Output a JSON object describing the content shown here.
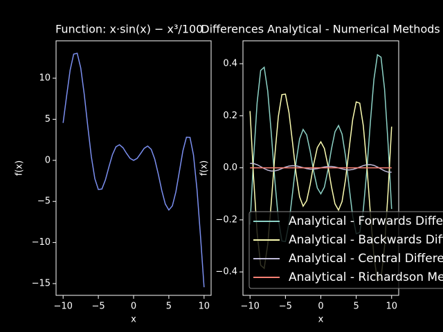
{
  "chart_data": [
    {
      "type": "line",
      "title": "Function: x·sin(x) − x³/100",
      "x_label": "x",
      "y_label": "f(x)",
      "x": [
        -10,
        -9.5,
        -9,
        -8.5,
        -8,
        -7.5,
        -7,
        -6.5,
        -6,
        -5.5,
        -5,
        -4.5,
        -4,
        -3.5,
        -3,
        -2.5,
        -2,
        -1.5,
        -1,
        -0.5,
        0,
        0.5,
        1,
        1.5,
        2,
        2.5,
        3,
        3.5,
        4,
        4.5,
        5,
        5.5,
        6,
        6.5,
        7,
        7.5,
        8,
        8.5,
        9,
        9.5,
        10
      ],
      "values": [
        4.56,
        7.859,
        10.999,
        12.928,
        13.035,
        11.254,
        8.029,
        4.144,
        0.483,
        -2.217,
        -3.545,
        -3.488,
        -2.387,
        -0.799,
        0.693,
        1.652,
        1.899,
        1.53,
        0.852,
        0.241,
        0,
        0.238,
        0.831,
        1.462,
        1.739,
        1.34,
        0.153,
        -1.656,
        -3.667,
        -5.31,
        -6.045,
        -5.544,
        -3.837,
        -1.348,
        1.169,
        2.816,
        2.795,
        0.646,
        -3.581,
        -9.288,
        -15.44
      ],
      "color": "#7b8ff0",
      "xlim": [
        -11,
        11
      ],
      "xticks": [
        {
          "value": -10,
          "label": "−10"
        },
        {
          "value": -5,
          "label": "−5"
        },
        0,
        5,
        10
      ],
      "ylim": [
        -16.43,
        14.55
      ],
      "yticks": [
        {
          "value": -15,
          "label": "−15"
        },
        {
          "value": -10,
          "label": "−10"
        },
        {
          "value": -5,
          "label": "−5"
        },
        0,
        5,
        10
      ]
    },
    {
      "type": "line",
      "title": "Differences Analytical - Numerical Methods",
      "x_label": "x",
      "y_label": "f(x)",
      "x": [
        -10,
        -9.5,
        -9,
        -8.5,
        -8,
        -7.5,
        -7,
        -6.5,
        -6,
        -5.5,
        -5,
        -4.5,
        -4,
        -3.5,
        -3,
        -2.5,
        -2,
        -1.5,
        -1,
        -0.5,
        0,
        0.5,
        1,
        1.5,
        2,
        2.5,
        3,
        3.5,
        4,
        4.5,
        5,
        5.5,
        6,
        6.5,
        7,
        7.5,
        8,
        8.5,
        9,
        9.5,
        10
      ],
      "series": [
        {
          "name": "Analytical - Forwards Differences",
          "color": "#8dd3c7",
          "values": [
            -0.2181,
            0.0355,
            0.2496,
            0.3741,
            0.3863,
            0.2946,
            0.1336,
            -0.0473,
            -0.1978,
            -0.2814,
            -0.2831,
            -0.2124,
            -0.098,
            0.0218,
            0.1112,
            0.1474,
            0.1265,
            0.0632,
            -0.015,
            -0.0773,
            -0.1,
            -0.0743,
            -0.009,
            0.0722,
            0.1385,
            0.1624,
            0.1292,
            0.0428,
            -0.074,
            -0.1854,
            -0.2531,
            -0.2484,
            -0.1618,
            -0.0083,
            0.1756,
            0.3396,
            0.4343,
            0.4251,
            0.3036,
            0.0925,
            -0.1581
          ]
        },
        {
          "name": "Analytical - Backwards Differences",
          "color": "#feffb3",
          "values": [
            0.2181,
            -0.0355,
            -0.2496,
            -0.3741,
            -0.3863,
            -0.2946,
            -0.1336,
            0.0473,
            0.1978,
            0.2814,
            0.2831,
            0.2124,
            0.098,
            -0.0218,
            -0.1112,
            -0.1474,
            -0.1265,
            -0.0632,
            0.015,
            0.0773,
            0.1,
            0.0743,
            0.009,
            -0.0722,
            -0.1385,
            -0.1624,
            -0.1292,
            -0.0428,
            0.074,
            0.1854,
            0.2531,
            0.2484,
            0.1618,
            0.0083,
            -0.1756,
            -0.3396,
            -0.4343,
            -0.4251,
            -0.3036,
            -0.0925,
            0.1581
          ]
        },
        {
          "name": "Analytical - Central Differences",
          "color": "#bfbbd9",
          "values": [
            0.0171,
            0.0166,
            0.0119,
            0.0047,
            -0.003,
            -0.0091,
            -0.0122,
            -0.0118,
            -0.0083,
            -0.0029,
            0.0026,
            0.0067,
            0.0084,
            0.0075,
            0.0044,
            0.0005,
            -0.0031,
            -0.0052,
            -0.0051,
            -0.0031,
            0.0001,
            0.0033,
            0.0053,
            0.0054,
            0.0033,
            -0.0003,
            -0.0042,
            -0.0073,
            -0.0082,
            -0.0065,
            -0.0024,
            0.0031,
            0.0085,
            0.012,
            0.0124,
            0.0093,
            0.0032,
            -0.0045,
            -0.0117,
            -0.0164,
            -0.0169
          ]
        },
        {
          "name": "Analytical - Richardson Method",
          "color": "#fa8174",
          "values": [
            0,
            0,
            0,
            0,
            0,
            0,
            0,
            0,
            0,
            0,
            0,
            0,
            0,
            0,
            0,
            0,
            0,
            0,
            0,
            0,
            0,
            0,
            0,
            0,
            0,
            0,
            0,
            0,
            0,
            0,
            0,
            0,
            0,
            0,
            0,
            0,
            0,
            0,
            0,
            0,
            0
          ]
        }
      ],
      "xlim": [
        -11,
        11
      ],
      "xticks": [
        {
          "value": -10,
          "label": "−10"
        },
        {
          "value": -5,
          "label": "−5"
        },
        0,
        5,
        10
      ],
      "ylim": [
        -0.49,
        0.488
      ],
      "yticks": [
        {
          "value": -0.4,
          "label": "−0.4"
        },
        {
          "value": -0.2,
          "label": "−0.2"
        },
        {
          "value": 0,
          "label": "0.0"
        },
        0.2,
        0.4
      ]
    }
  ]
}
